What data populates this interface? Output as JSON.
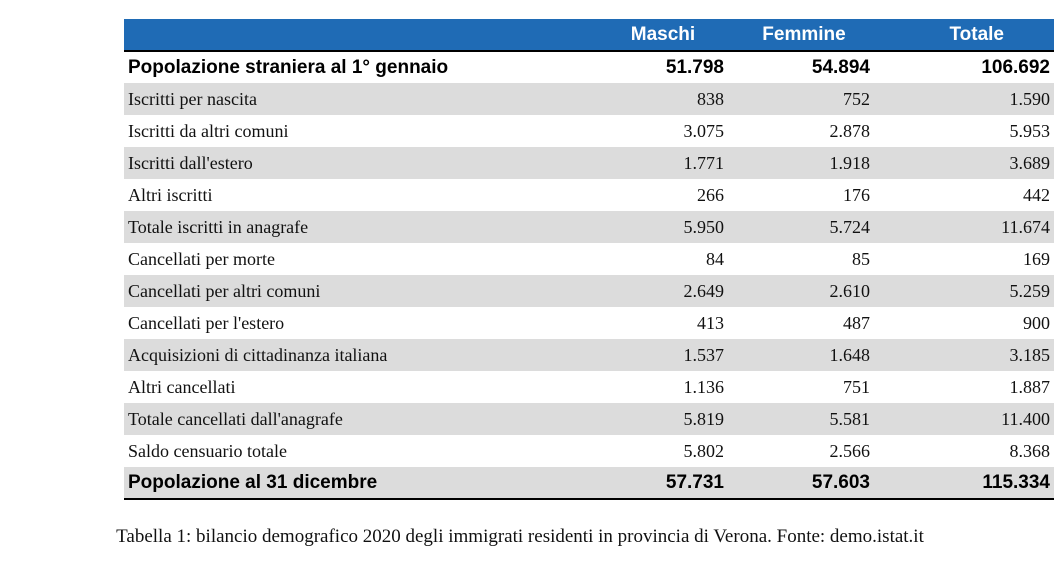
{
  "table": {
    "headers": {
      "label": "",
      "maschi": "Maschi",
      "femmine": "Femmine",
      "totale": "Totale"
    },
    "rows": [
      {
        "label": "Popolazione straniera al 1° gennaio",
        "maschi": "51.798",
        "femmine": "54.894",
        "totale": "106.692"
      },
      {
        "label": "Iscritti per nascita",
        "maschi": "838",
        "femmine": "752",
        "totale": "1.590"
      },
      {
        "label": "Iscritti da altri comuni",
        "maschi": "3.075",
        "femmine": "2.878",
        "totale": "5.953"
      },
      {
        "label": "Iscritti dall'estero",
        "maschi": "1.771",
        "femmine": "1.918",
        "totale": "3.689"
      },
      {
        "label": "Altri iscritti",
        "maschi": "266",
        "femmine": "176",
        "totale": "442"
      },
      {
        "label": "Totale iscritti in anagrafe",
        "maschi": "5.950",
        "femmine": "5.724",
        "totale": "11.674"
      },
      {
        "label": "Cancellati per morte",
        "maschi": "84",
        "femmine": "85",
        "totale": "169"
      },
      {
        "label": "Cancellati per altri comuni",
        "maschi": "2.649",
        "femmine": "2.610",
        "totale": "5.259"
      },
      {
        "label": "Cancellati per l'estero",
        "maschi": "413",
        "femmine": "487",
        "totale": "900"
      },
      {
        "label": "Acquisizioni di cittadinanza italiana",
        "maschi": "1.537",
        "femmine": "1.648",
        "totale": "3.185"
      },
      {
        "label": "Altri cancellati",
        "maschi": "1.136",
        "femmine": "751",
        "totale": "1.887"
      },
      {
        "label": "Totale cancellati dall'anagrafe",
        "maschi": "5.819",
        "femmine": "5.581",
        "totale": "11.400"
      },
      {
        "label": "Saldo censuario totale",
        "maschi": "5.802",
        "femmine": "2.566",
        "totale": "8.368"
      },
      {
        "label": "Popolazione al 31 dicembre",
        "maschi": "57.731",
        "femmine": "57.603",
        "totale": "115.334"
      }
    ]
  },
  "caption": "Tabella 1: bilancio demografico 2020 degli immigrati residenti in provincia di Verona. Fonte: demo.istat.it",
  "colors": {
    "header_bg": "#1f6bb5",
    "header_text": "#ffffff",
    "stripe": "#dcdcdc"
  }
}
